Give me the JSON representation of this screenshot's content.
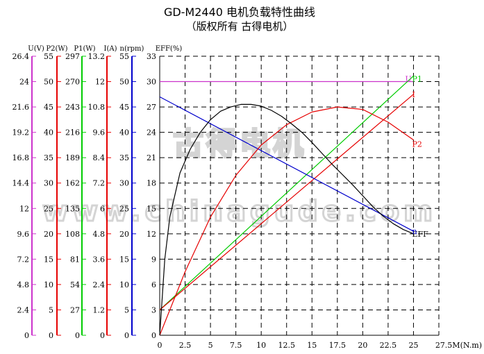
{
  "chart_data": {
    "type": "line",
    "title": "GD-M2440 电机负载特性曲线",
    "subtitle": "（版权所有 古得电机）",
    "xlabel": "27.5M(N.m)",
    "x_ticks": [
      "0",
      "2.5",
      "5",
      "7.5",
      "10",
      "12.5",
      "15",
      "17.5",
      "20",
      "22.5",
      "25"
    ],
    "xlim": [
      0,
      27.5
    ],
    "grid": true,
    "axes": [
      {
        "key": "U",
        "header": "U(V)",
        "color": "#cc33cc",
        "max": 26.4,
        "ticks": [
          "0",
          "2.4",
          "4.8",
          "7.2",
          "9.6",
          "12",
          "14.4",
          "16.8",
          "19.2",
          "21.6",
          "24",
          "26.4"
        ]
      },
      {
        "key": "P2",
        "header": "P2(W)",
        "color": "#e60000",
        "max": 55,
        "ticks": [
          "0",
          "5",
          "10",
          "15",
          "20",
          "25",
          "30",
          "35",
          "40",
          "45",
          "50",
          "55"
        ]
      },
      {
        "key": "P1",
        "header": "P1(W)",
        "color": "#00cc00",
        "max": 297,
        "ticks": [
          "0",
          "27",
          "54",
          "81",
          "108",
          "135",
          "162",
          "189",
          "216",
          "243",
          "270",
          "297"
        ]
      },
      {
        "key": "I",
        "header": "I(A)",
        "color": "#e60000",
        "max": 13.2,
        "ticks": [
          "0",
          "1.2",
          "2.4",
          "3.6",
          "4.8",
          "6",
          "7.2",
          "8.4",
          "9.6",
          "10.8",
          "12",
          "13.2"
        ]
      },
      {
        "key": "n",
        "header": "n(rpm)",
        "color": "#0000cc",
        "max": 55,
        "ticks": [
          "0",
          "5",
          "10",
          "15",
          "20",
          "25",
          "30",
          "35",
          "40",
          "45",
          "50",
          "55"
        ]
      },
      {
        "key": "EFF",
        "header": "EFF(%)",
        "color": "#000000",
        "max": 33,
        "ticks": [
          "0",
          "3",
          "6",
          "9",
          "12",
          "15",
          "18",
          "21",
          "24",
          "27",
          "30",
          "33"
        ]
      }
    ],
    "series": [
      {
        "name": "U",
        "axis": "U",
        "color": "#cc33cc",
        "x": [
          0,
          25
        ],
        "y": [
          24,
          24
        ]
      },
      {
        "name": "P1",
        "axis": "P1",
        "color": "#00cc00",
        "x": [
          0,
          25
        ],
        "y": [
          27,
          276
        ]
      },
      {
        "name": "I",
        "axis": "I",
        "color": "#e60000",
        "x": [
          0,
          25
        ],
        "y": [
          1.2,
          11.4
        ]
      },
      {
        "name": "n",
        "axis": "n",
        "color": "#0000cc",
        "x": [
          0,
          25
        ],
        "y": [
          47,
          20.5
        ]
      },
      {
        "name": "P2",
        "axis": "P2",
        "color": "#e60000",
        "x": [
          0,
          2.5,
          5,
          7.5,
          10,
          12.5,
          15,
          17.5,
          20,
          22.5,
          25
        ],
        "y": [
          0,
          12.5,
          23.3,
          31.5,
          37.5,
          41.5,
          44,
          45,
          44.5,
          42,
          38.5
        ]
      },
      {
        "name": "EFF",
        "axis": "EFF",
        "color": "#000000",
        "x": [
          0,
          0.5,
          1,
          2,
          3,
          4,
          5,
          6,
          7,
          8,
          9,
          10,
          11,
          12,
          13,
          14,
          15,
          16,
          17,
          18,
          19,
          20,
          21,
          22,
          23,
          24,
          25
        ],
        "y": [
          0,
          9,
          14,
          19.2,
          22,
          24,
          25.5,
          26.5,
          27,
          27.3,
          27.3,
          27.1,
          26.6,
          25.9,
          25,
          24,
          22.8,
          21.5,
          20.2,
          19,
          17.8,
          16.5,
          15.2,
          14.1,
          13.2,
          12.5,
          12
        ]
      }
    ],
    "curve_labels": [
      {
        "text": "U",
        "series": "U",
        "color": "#cc33cc"
      },
      {
        "text": "P1",
        "series": "P1",
        "color": "#00cc00"
      },
      {
        "text": "I",
        "series": "I",
        "color": "#e60000"
      },
      {
        "text": "P2",
        "series": "P2",
        "color": "#e60000"
      },
      {
        "text": "EFF",
        "series": "EFF",
        "color": "#000000"
      },
      {
        "text": "n",
        "series": "n",
        "color": "#0000cc"
      }
    ]
  },
  "watermark": {
    "line1": "古得电机",
    "line2": "www.chinagude.com"
  }
}
